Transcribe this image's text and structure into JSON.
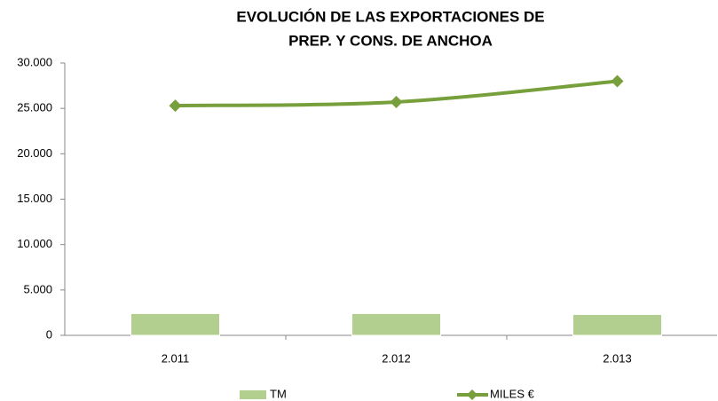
{
  "chart_data": {
    "type": "bar-line",
    "title": [
      "EVOLUCIÓN DE LAS EXPORTACIONES DE",
      "PREP. Y CONS. DE ANCHOA"
    ],
    "categories": [
      "2.011",
      "2.012",
      "2.013"
    ],
    "series": [
      {
        "name": "TM",
        "type": "bar",
        "color": "#b3cf8f",
        "values": [
          2400,
          2400,
          2300
        ]
      },
      {
        "name": "MILES €",
        "type": "line",
        "color": "#77a03c",
        "values": [
          25300,
          25700,
          28000
        ]
      }
    ],
    "ylim": [
      0,
      30000
    ],
    "yticks": [
      0,
      {
        "value": 5000,
        "label": "5.000"
      },
      {
        "value": 10000,
        "label": "10.000"
      },
      {
        "value": 15000,
        "label": "15.000"
      },
      {
        "value": 20000,
        "label": "20.000"
      },
      {
        "value": 25000,
        "label": "25.000"
      },
      {
        "value": 30000,
        "label": "30.000"
      }
    ],
    "grid": false,
    "legend": "bottom"
  }
}
